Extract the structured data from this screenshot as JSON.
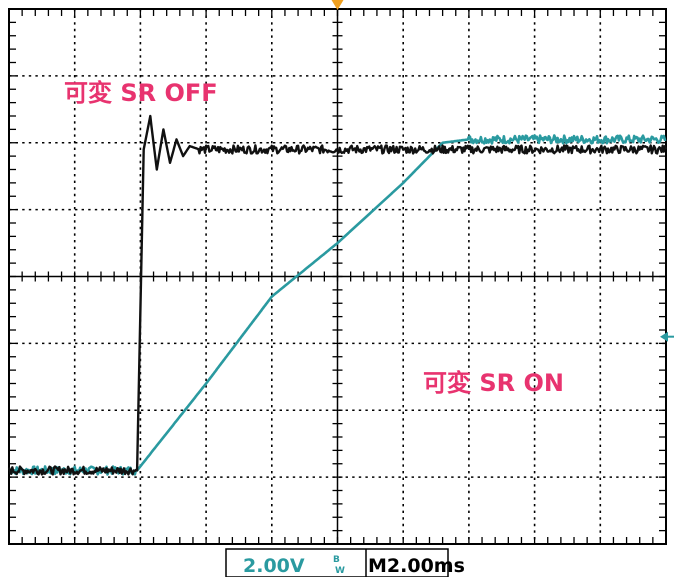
{
  "chart_data": {
    "type": "line",
    "title": "",
    "xlabel": "",
    "ylabel": "",
    "x_divisions": 10,
    "y_divisions": 8,
    "xlim": [
      0,
      10
    ],
    "ylim": [
      -4,
      4
    ],
    "grid": true,
    "annotations": {
      "off_label": "可変 SR OFF",
      "on_label": "可変 SR ON"
    },
    "readout": {
      "volts_per_div": "2.00V",
      "bw_mark_top": "B",
      "bw_mark_bottom": "W",
      "time_per_div": "M2.00ms"
    },
    "colors": {
      "off_trace": "#111111",
      "on_trace": "#2a9aa0",
      "label": "#e8336f",
      "trigger_marker": "#f0a020",
      "grid": "#000000"
    },
    "series": [
      {
        "x": [
          0,
          1.8,
          1.95,
          2.05,
          2.15,
          2.25,
          2.35,
          2.45,
          2.55,
          2.65,
          2.75,
          2.9,
          3.3,
          4,
          5,
          6,
          7,
          8,
          9,
          10
        ],
        "y": [
          -2.9,
          -2.9,
          -2.9,
          1.9,
          2.4,
          1.6,
          2.2,
          1.7,
          2.05,
          1.8,
          1.95,
          1.9,
          1.9,
          1.9,
          1.9,
          1.9,
          1.9,
          1.9,
          1.9,
          1.9
        ]
      },
      {
        "x": [
          0,
          1.95,
          3,
          4,
          5,
          6,
          6.6,
          7,
          8,
          9,
          10
        ],
        "y": [
          -2.9,
          -2.9,
          -1.6,
          -0.3,
          0.5,
          1.4,
          2.0,
          2.05,
          2.05,
          2.05,
          2.05
        ]
      }
    ]
  }
}
